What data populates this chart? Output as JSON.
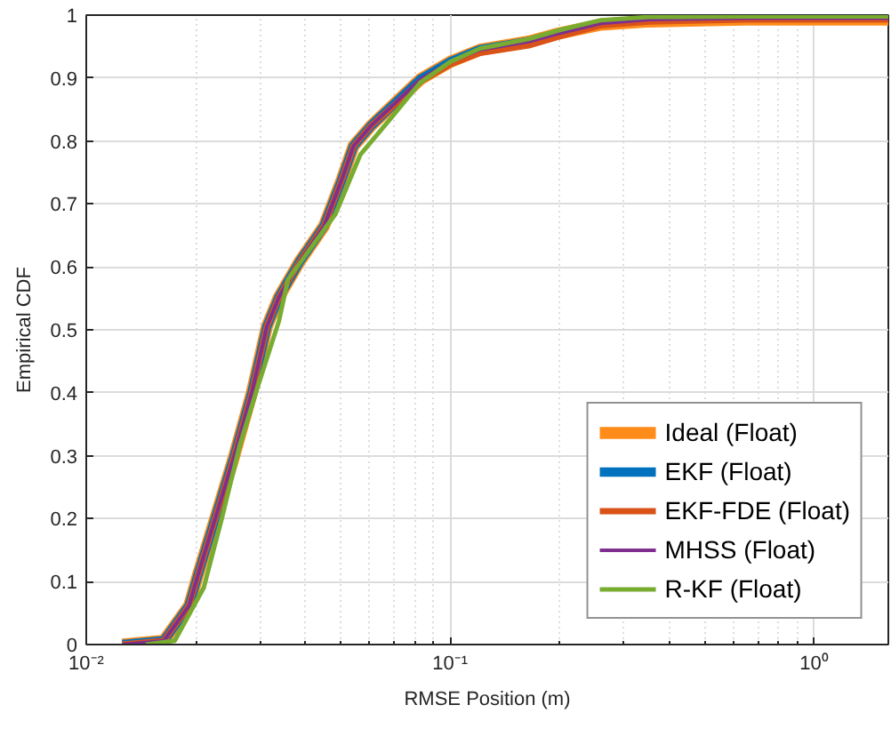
{
  "chart_data": {
    "type": "line",
    "xlabel": "RMSE Position (m)",
    "ylabel": "Empirical CDF",
    "log": "x",
    "grid": true,
    "legend": "bottom right",
    "xlim": [
      0.01,
      1.6
    ],
    "xticks": [
      {
        "value": 0.01,
        "label": "10⁻²"
      },
      {
        "value": 0.1,
        "label": "10⁻¹"
      },
      {
        "value": 1,
        "label": "10⁰"
      }
    ],
    "ylim": [
      0,
      1
    ],
    "yticks": [
      0,
      0.1,
      0.2,
      0.3,
      0.4,
      0.5,
      0.6,
      0.7,
      0.8,
      0.9,
      1
    ],
    "series": [
      {
        "name": "Ideal (Float)",
        "color": "#ff8c1a",
        "x": [
          0.01257,
          0.01634,
          0.01918,
          0.02024,
          0.02269,
          0.02543,
          0.02851,
          0.03135,
          0.03385,
          0.03852,
          0.04503,
          0.05048,
          0.05426,
          0.0608,
          0.0711,
          0.0828,
          0.1002,
          0.1208,
          0.1644,
          0.199,
          0.2597,
          0.352,
          0.648,
          1.6
        ],
        "values": [
          0,
          0.006,
          0.062,
          0.109,
          0.203,
          0.297,
          0.4,
          0.505,
          0.552,
          0.608,
          0.665,
          0.74,
          0.792,
          0.825,
          0.862,
          0.898,
          0.926,
          0.945,
          0.958,
          0.971,
          0.985,
          0.99,
          0.993,
          0.993
        ]
      },
      {
        "name": "EKF (Float)",
        "color": "#0072bd",
        "x": [
          0.01257,
          0.01634,
          0.01918,
          0.02024,
          0.02269,
          0.02543,
          0.02851,
          0.03135,
          0.03385,
          0.03852,
          0.04503,
          0.05048,
          0.05426,
          0.0608,
          0.0711,
          0.0828,
          0.1002,
          0.1208,
          0.1644,
          0.199
        ],
        "values": [
          0,
          0.006,
          0.062,
          0.109,
          0.203,
          0.297,
          0.4,
          0.505,
          0.552,
          0.608,
          0.665,
          0.74,
          0.792,
          0.825,
          0.862,
          0.898,
          0.926,
          0.945,
          0.958,
          0.971
        ]
      },
      {
        "name": "EKF-FDE (Float)",
        "color": "#d95319",
        "x": [
          0.01257,
          0.01634,
          0.01918,
          0.02024,
          0.02269,
          0.02543,
          0.02851,
          0.03135,
          0.03385,
          0.03852,
          0.04503,
          0.05048,
          0.05426,
          0.0608,
          0.0711,
          0.0828,
          0.1002,
          0.1208,
          0.1644,
          0.199,
          0.2597,
          0.352,
          0.648,
          1.6
        ],
        "values": [
          0,
          0.006,
          0.062,
          0.109,
          0.203,
          0.297,
          0.4,
          0.505,
          0.552,
          0.608,
          0.665,
          0.74,
          0.792,
          0.825,
          0.86,
          0.895,
          0.922,
          0.94,
          0.952,
          0.966,
          0.984,
          0.99,
          0.993,
          0.993
        ]
      },
      {
        "name": "MHSS (Float)",
        "color": "#7e2f8e",
        "x": [
          0.01257,
          0.01634,
          0.01918,
          0.02024,
          0.02269,
          0.02543,
          0.02851,
          0.03135,
          0.03385,
          0.03852,
          0.04503,
          0.05048,
          0.05426,
          0.0608,
          0.0711,
          0.0828,
          0.1002,
          0.1208,
          0.1644,
          0.199,
          0.2597,
          0.352,
          0.648,
          1.6
        ],
        "values": [
          0,
          0.006,
          0.062,
          0.109,
          0.203,
          0.297,
          0.4,
          0.505,
          0.552,
          0.608,
          0.665,
          0.74,
          0.792,
          0.825,
          0.862,
          0.898,
          0.926,
          0.945,
          0.958,
          0.971,
          0.987,
          0.993,
          0.995,
          0.995
        ]
      },
      {
        "name": "R-KF (Float)",
        "color": "#77ac30",
        "x": [
          0.01458,
          0.0175,
          0.02102,
          0.02357,
          0.02641,
          0.02961,
          0.03385,
          0.03583,
          0.04841,
          0.05661,
          0.0682,
          0.0828,
          0.1002,
          0.1208,
          0.1644,
          0.199,
          0.2597,
          0.352,
          0.648,
          1.6
        ],
        "values": [
          0,
          0.006,
          0.09,
          0.2,
          0.316,
          0.41,
          0.514,
          0.58,
          0.684,
          0.778,
          0.834,
          0.893,
          0.926,
          0.947,
          0.962,
          0.976,
          0.992,
          0.997,
          0.998,
          0.998
        ]
      }
    ]
  }
}
